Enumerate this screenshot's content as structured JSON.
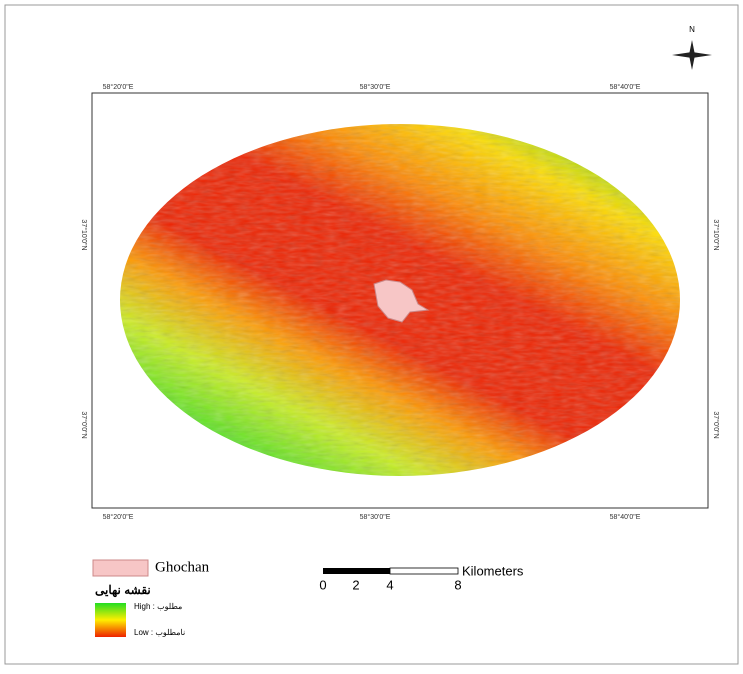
{
  "north": "N",
  "grid_labels": {
    "top": [
      "58°20'0\"E",
      "58°30'0\"E",
      "58°40'0\"E"
    ],
    "bottom": [
      "58°20'0\"E",
      "58°30'0\"E",
      "58°40'0\"E"
    ],
    "left": [
      "37°10'0\"N",
      "37°0'0\"N"
    ],
    "right": [
      "37°10'0\"N",
      "37°0'0\"N"
    ]
  },
  "legend": {
    "city": "Ghochan",
    "title": "نقشه نهایی",
    "high": "High : مطلوب",
    "low": "Low : نامطلوب"
  },
  "scale_bar": {
    "ticks": [
      "0",
      "2",
      "4",
      "8"
    ],
    "unit": "Kilometers"
  }
}
